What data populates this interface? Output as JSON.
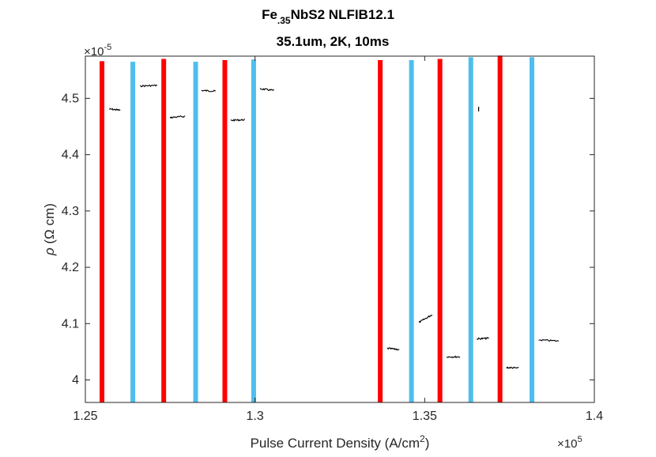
{
  "chart_data": {
    "type": "scatter",
    "title_parts": [
      "Fe",
      ".35",
      "NbS2 NLFIB12.1"
    ],
    "subtitle": "35.1um, 2K, 10ms",
    "ylabel_parts": [
      "ρ",
      " (Ω cm)"
    ],
    "xlabel_parts": [
      "Pulse Current Density (A/cm",
      "2",
      ")"
    ],
    "x_exponent_parts": [
      "×10",
      "5"
    ],
    "y_exponent_parts": [
      "×10",
      "-5"
    ],
    "xlim": [
      1.25,
      1.4
    ],
    "ylim": [
      3.96,
      4.575
    ],
    "x_ticks": [
      1.25,
      1.3,
      1.35,
      1.4
    ],
    "x_tick_labels": [
      "1.25",
      "1.3",
      "1.35",
      "1.4"
    ],
    "y_ticks": [
      4.0,
      4.1,
      4.2,
      4.3,
      4.4,
      4.5
    ],
    "y_tick_labels": [
      "4",
      "4.1",
      "4.2",
      "4.3",
      "4.4",
      "4.5"
    ],
    "grid": false,
    "colors": {
      "red": "#ff0000",
      "blue": "#4dbeee",
      "data": "#000000",
      "axes": "#262626"
    },
    "vertical_lines": [
      {
        "x": 1.2549,
        "color": "red",
        "y_top": 4.566
      },
      {
        "x": 1.264,
        "color": "blue",
        "y_top": 4.565
      },
      {
        "x": 1.2731,
        "color": "red",
        "y_top": 4.57
      },
      {
        "x": 1.2825,
        "color": "blue",
        "y_top": 4.565
      },
      {
        "x": 1.2911,
        "color": "red",
        "y_top": 4.568
      },
      {
        "x": 1.2996,
        "color": "blue",
        "y_top": 4.569
      },
      {
        "x": 1.3369,
        "color": "red",
        "y_top": 4.568
      },
      {
        "x": 1.3461,
        "color": "blue",
        "y_top": 4.568
      },
      {
        "x": 1.3545,
        "color": "red",
        "y_top": 4.57
      },
      {
        "x": 1.3636,
        "color": "blue",
        "y_top": 4.573
      },
      {
        "x": 1.3722,
        "color": "red",
        "y_top": 4.576
      },
      {
        "x": 1.3816,
        "color": "blue",
        "y_top": 4.573
      }
    ],
    "series": [
      {
        "x_start": 1.257,
        "x_end": 1.2603,
        "y_start": 4.481,
        "y_end": 4.479
      },
      {
        "x_start": 1.2662,
        "x_end": 1.2712,
        "y_start": 4.522,
        "y_end": 4.523
      },
      {
        "x_start": 1.275,
        "x_end": 1.2794,
        "y_start": 4.466,
        "y_end": 4.468
      },
      {
        "x_start": 1.2842,
        "x_end": 1.2884,
        "y_start": 4.514,
        "y_end": 4.513
      },
      {
        "x_start": 1.2928,
        "x_end": 1.297,
        "y_start": 4.461,
        "y_end": 4.462
      },
      {
        "x_start": 1.3015,
        "x_end": 1.3056,
        "y_start": 4.517,
        "y_end": 4.514
      },
      {
        "x_start": 1.3389,
        "x_end": 1.3425,
        "y_start": 4.056,
        "y_end": 4.054
      },
      {
        "x_start": 1.3483,
        "x_end": 1.3522,
        "y_start": 4.102,
        "y_end": 4.116
      },
      {
        "x_start": 1.3565,
        "x_end": 1.3604,
        "y_start": 4.041,
        "y_end": 4.041
      },
      {
        "x_start": 1.3654,
        "x_end": 1.3689,
        "y_start": 4.073,
        "y_end": 4.074
      },
      {
        "x_start": 1.3741,
        "x_end": 1.3777,
        "y_start": 4.022,
        "y_end": 4.021
      },
      {
        "x_start": 1.3836,
        "x_end": 1.3895,
        "y_start": 4.071,
        "y_end": 4.069
      }
    ],
    "stray_point": {
      "x": 1.3659,
      "y": 4.481
    }
  }
}
